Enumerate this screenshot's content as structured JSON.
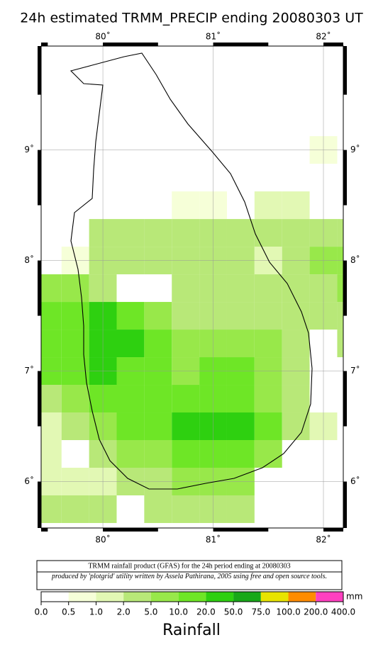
{
  "map": {
    "title": "24h estimated TRMM_PRECIP  ending 20080303 UT",
    "lonlim": [
      79.44,
      82.18
    ],
    "latlim": [
      5.58,
      9.94
    ],
    "lonticks": [
      {
        "value": 80,
        "label": "80˚"
      },
      {
        "value": 81,
        "label": "81˚"
      },
      {
        "value": 82,
        "label": "82˚"
      }
    ],
    "latticks": [
      {
        "value": 6,
        "label": "6˚"
      },
      {
        "value": 7,
        "label": "7˚"
      },
      {
        "value": 8,
        "label": "8˚"
      },
      {
        "value": 9,
        "label": "9˚"
      }
    ],
    "grid": {
      "lon0": 79.375,
      "lat0": 9.125,
      "step": 0.25,
      "rows": [
        [
          null,
          null,
          null,
          null,
          null,
          null,
          null,
          null,
          null,
          null,
          0.8,
          null
        ],
        [
          null,
          null,
          null,
          null,
          null,
          null,
          null,
          null,
          null,
          null,
          null,
          null
        ],
        [
          null,
          null,
          null,
          null,
          null,
          0.8,
          0.8,
          null,
          1.5,
          1.5,
          null,
          null
        ],
        [
          null,
          null,
          3,
          3,
          3,
          2.5,
          2.5,
          2.5,
          2,
          2.5,
          3,
          3
        ],
        [
          null,
          0.8,
          3,
          3,
          3,
          2,
          2.5,
          2.5,
          1.5,
          2,
          5,
          5
        ],
        [
          6,
          6,
          3,
          null,
          null,
          2.5,
          3,
          3,
          2,
          2,
          4,
          5
        ],
        [
          10,
          12,
          20,
          15,
          6,
          3,
          3,
          4,
          4,
          3,
          2.5,
          2
        ],
        [
          12,
          15,
          25,
          20,
          10,
          5,
          6,
          8,
          6,
          4,
          null,
          3
        ],
        [
          10,
          15,
          20,
          15,
          12,
          8,
          10,
          10,
          8,
          4,
          null,
          null
        ],
        [
          4,
          6,
          12,
          10,
          10,
          15,
          15,
          15,
          8,
          4,
          null,
          null
        ],
        [
          1.5,
          3,
          5,
          12,
          15,
          25,
          30,
          40,
          12,
          3,
          1.5,
          null
        ],
        [
          1,
          null,
          3,
          5,
          6,
          10,
          15,
          15,
          8,
          null,
          null,
          null
        ],
        [
          1.5,
          1.5,
          1.2,
          2,
          3,
          5,
          6,
          6,
          null,
          null,
          null,
          null
        ],
        [
          2,
          2,
          2.5,
          null,
          2,
          2,
          2.5,
          2.5,
          null,
          null,
          null,
          null
        ]
      ]
    }
  },
  "footer": {
    "line1": "TRMM rainfall product (GFAS) for the 24h period ending at 20080303",
    "line2": "produced by 'plotgrid' utility written by Assela Pathirana, 2005 using free and open source tools."
  },
  "colorbar": {
    "unit": "mm",
    "label": "Rainfall",
    "ticks": [
      {
        "value": 0,
        "label": "0.0"
      },
      {
        "value": 0.5,
        "label": "0.5"
      },
      {
        "value": 1,
        "label": "1.0"
      },
      {
        "value": 2,
        "label": "2.0"
      },
      {
        "value": 5,
        "label": "5.0"
      },
      {
        "value": 10,
        "label": "10.0"
      },
      {
        "value": 20,
        "label": "20.0"
      },
      {
        "value": 50,
        "label": "50.0"
      },
      {
        "value": 75,
        "label": "75.0"
      },
      {
        "value": 100,
        "label": "100.0"
      },
      {
        "value": 200,
        "label": "200.0"
      },
      {
        "value": 400,
        "label": "400.0"
      }
    ],
    "colors": [
      "#ffffff",
      "#f6ffd8",
      "#e2f8b4",
      "#b8e878",
      "#98e84a",
      "#6ee626",
      "#2ed010",
      "#18a818",
      "#e8e400",
      "#ff8c00",
      "#ff40c0"
    ]
  }
}
